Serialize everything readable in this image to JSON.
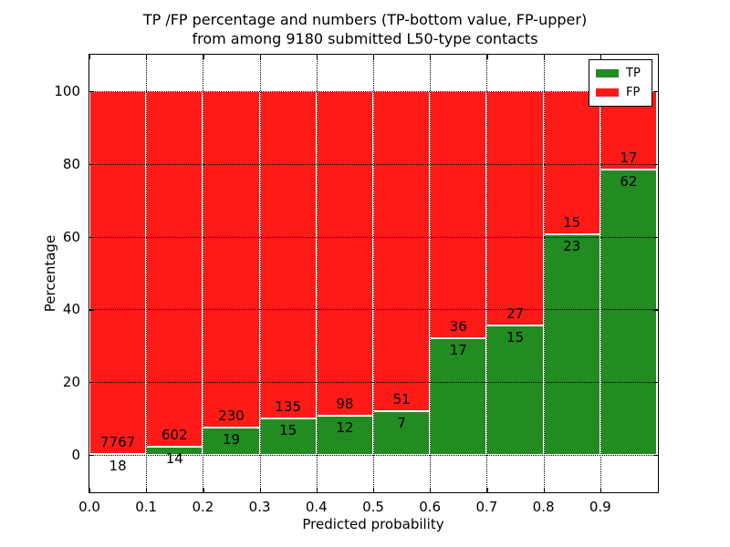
{
  "title": {
    "line1": "TP /FP percentage and numbers (TP-bottom value, FP-upper)",
    "line2": "from among 9180 submitted L50-type contacts"
  },
  "chart_data": {
    "type": "bar",
    "stacked": true,
    "normalized": "each bin scaled to 100%",
    "title": "TP /FP percentage and numbers (TP-bottom value, FP-upper) from among 9180 submitted L50-type contacts",
    "xlabel": "Predicted probability",
    "ylabel": "Percentage",
    "xlim": [
      0.0,
      1.0
    ],
    "ylim": [
      -10,
      110
    ],
    "x_ticks": [
      "0.0",
      "0.1",
      "0.2",
      "0.3",
      "0.4",
      "0.5",
      "0.6",
      "0.7",
      "0.8",
      "0.9"
    ],
    "y_ticks": [
      0,
      20,
      40,
      60,
      80,
      100
    ],
    "grid": "dotted black, both axes",
    "bin_width": 0.1,
    "total_contacts": 9180,
    "bins": [
      {
        "x_start": 0.0,
        "x_end": 0.1,
        "tp": 18,
        "fp": 7767
      },
      {
        "x_start": 0.1,
        "x_end": 0.2,
        "tp": 14,
        "fp": 602
      },
      {
        "x_start": 0.2,
        "x_end": 0.3,
        "tp": 19,
        "fp": 230
      },
      {
        "x_start": 0.3,
        "x_end": 0.4,
        "tp": 15,
        "fp": 135
      },
      {
        "x_start": 0.4,
        "x_end": 0.5,
        "tp": 12,
        "fp": 98
      },
      {
        "x_start": 0.5,
        "x_end": 0.6,
        "tp": 7,
        "fp": 51
      },
      {
        "x_start": 0.6,
        "x_end": 0.7,
        "tp": 17,
        "fp": 36
      },
      {
        "x_start": 0.7,
        "x_end": 0.8,
        "tp": 15,
        "fp": 27
      },
      {
        "x_start": 0.8,
        "x_end": 0.9,
        "tp": 23,
        "fp": 15
      },
      {
        "x_start": 0.9,
        "x_end": 1.0,
        "tp": 62,
        "fp": 17
      }
    ],
    "series": [
      {
        "name": "TP",
        "position": "bottom",
        "color": "#228b22",
        "counts": [
          18,
          14,
          19,
          15,
          12,
          7,
          17,
          15,
          23,
          62
        ]
      },
      {
        "name": "FP",
        "position": "top",
        "color": "#fd1a17",
        "counts": [
          7767,
          602,
          230,
          135,
          98,
          51,
          36,
          27,
          15,
          17
        ]
      }
    ],
    "legend": {
      "position": "upper right",
      "entries": [
        {
          "label": "TP",
          "color": "#228b22"
        },
        {
          "label": "FP",
          "color": "#fd1a17"
        }
      ]
    },
    "bar_edge_color": "#ffffff",
    "text_color": "#000000"
  }
}
